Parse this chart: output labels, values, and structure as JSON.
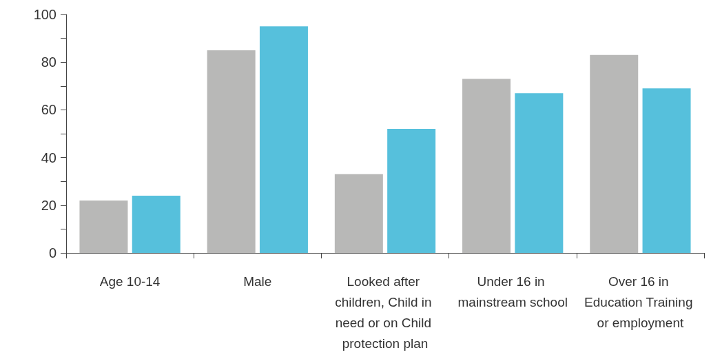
{
  "chart_data": {
    "type": "bar",
    "categories": [
      "Age 10-14",
      "Male",
      "Looked after children, Child in need or on Child protection plan",
      "Under 16 in mainstream school",
      "Over 16 in Education Training or employment"
    ],
    "series": [
      {
        "color": "#b8b8b7",
        "values": [
          22,
          85,
          33,
          73,
          83
        ]
      },
      {
        "color": "#56c0dc",
        "values": [
          24,
          95,
          52,
          67,
          69
        ]
      }
    ],
    "ylim": [
      0,
      100
    ],
    "yticks": [
      0,
      {
        "value": 10,
        "label": null
      },
      20,
      {
        "value": 30,
        "label": null
      },
      40,
      {
        "value": 50,
        "label": null
      },
      60,
      {
        "value": 70,
        "label": null
      },
      80,
      {
        "value": 90,
        "label": null
      },
      100
    ],
    "grid": false
  }
}
